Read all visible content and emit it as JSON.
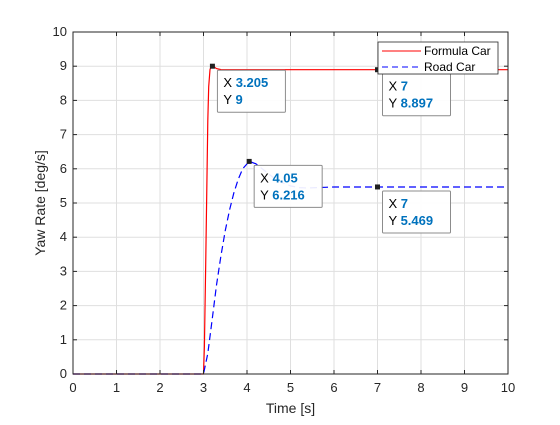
{
  "chart_data": {
    "type": "line",
    "xlabel": "Time [s]",
    "ylabel": "Yaw Rate [deg/s]",
    "xlim": [
      0,
      10
    ],
    "ylim": [
      0,
      10
    ],
    "xticks": [
      0,
      1,
      2,
      3,
      4,
      5,
      6,
      7,
      8,
      9,
      10
    ],
    "yticks": [
      0,
      1,
      2,
      3,
      4,
      5,
      6,
      7,
      8,
      9,
      10
    ],
    "grid": true,
    "legend_location": "top-right",
    "series": [
      {
        "name": "Formula Car",
        "color": "#FF0000",
        "line_style": "solid",
        "x": [
          0,
          3.0,
          3.02,
          3.05,
          3.08,
          3.1,
          3.12,
          3.15,
          3.18,
          3.205,
          3.25,
          3.3,
          3.4,
          3.6,
          4.0,
          5.0,
          6.0,
          7.0,
          8.0,
          9.0,
          10.0
        ],
        "y": [
          0,
          0,
          0.8,
          3.2,
          5.8,
          7.4,
          8.4,
          8.9,
          9.0,
          9.0,
          8.97,
          8.93,
          8.9,
          8.897,
          8.897,
          8.897,
          8.897,
          8.897,
          8.897,
          8.897,
          8.897
        ]
      },
      {
        "name": "Road Car",
        "color": "#0000FF",
        "line_style": "dashed",
        "x": [
          0,
          3.0,
          3.1,
          3.2,
          3.3,
          3.4,
          3.5,
          3.6,
          3.7,
          3.8,
          3.9,
          4.05,
          4.2,
          4.4,
          4.6,
          4.8,
          5.0,
          5.2,
          5.4,
          5.6,
          5.8,
          6.0,
          6.5,
          7.0,
          8.0,
          9.0,
          10.0
        ],
        "y": [
          0,
          0,
          0.6,
          1.6,
          2.6,
          3.45,
          4.2,
          4.8,
          5.3,
          5.7,
          6.0,
          6.216,
          6.15,
          5.95,
          5.75,
          5.6,
          5.5,
          5.45,
          5.44,
          5.45,
          5.46,
          5.468,
          5.469,
          5.469,
          5.469,
          5.469,
          5.469
        ]
      }
    ],
    "datatips": [
      {
        "series": "Formula Car",
        "x": "3.205",
        "y": "9"
      },
      {
        "series": "Road Car",
        "x": "4.05",
        "y": "6.216"
      },
      {
        "series": "Formula Car",
        "x": "7",
        "y": "8.897"
      },
      {
        "series": "Road Car",
        "x": "7",
        "y": "5.469"
      }
    ]
  },
  "datatip_labels": {
    "x": "X",
    "y": "Y"
  }
}
